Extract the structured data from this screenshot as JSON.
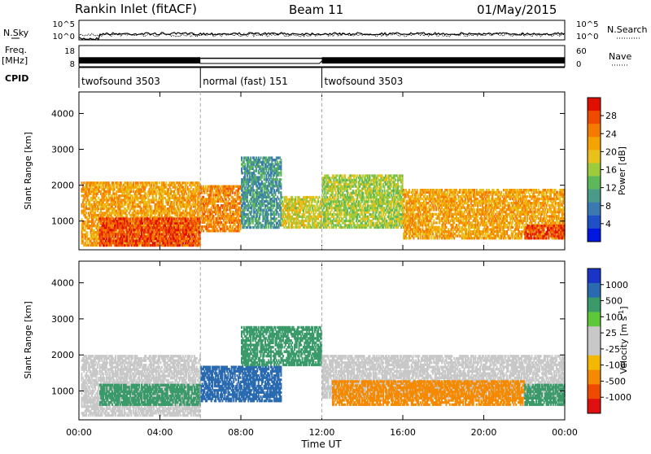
{
  "header": {
    "station": "Rankin Inlet (fitACF)",
    "beam": "Beam 11",
    "date": "01/May/2015"
  },
  "noise_panel": {
    "left_label": "N.Sky",
    "right_label": "N.Search",
    "left_ticks": [
      "10^5",
      "10^0"
    ],
    "right_ticks": [
      "10^5",
      "10^0"
    ]
  },
  "freq_panel": {
    "left_label_1": "Freq.",
    "left_label_2": "[MHz]",
    "left_ticks": [
      "18",
      "8"
    ],
    "right_label": "Nave",
    "right_ticks": [
      "60",
      "0"
    ],
    "ylim": [
      8,
      18
    ],
    "nave_lim": [
      0,
      60
    ]
  },
  "cpid": {
    "label": "CPID",
    "segments": [
      {
        "name": "twofsound 3503",
        "start_h": 0,
        "end_h": 6
      },
      {
        "name": "normal (fast) 151",
        "start_h": 6,
        "end_h": 12
      },
      {
        "name": "twofsound 3503",
        "start_h": 12,
        "end_h": 24
      }
    ]
  },
  "x_axis": {
    "label": "Time UT",
    "range_h": [
      0,
      24
    ],
    "ticks": [
      "00:00",
      "04:00",
      "08:00",
      "12:00",
      "16:00",
      "20:00",
      "00:00"
    ],
    "tick_hours": [
      0,
      4,
      8,
      12,
      16,
      20,
      24
    ]
  },
  "colors": {
    "power": [
      "#0018e0",
      "#2050c8",
      "#3a7ab0",
      "#4a9a8a",
      "#5db85a",
      "#9ccc3c",
      "#e8c21a",
      "#f5a300",
      "#f57a00",
      "#f04a00",
      "#e01000"
    ],
    "velocity": [
      "#e01010",
      "#f04a00",
      "#f58a00",
      "#f5b800",
      "#c8c8c8",
      "#c8c8c8",
      "#5cc83a",
      "#3a9a6a",
      "#2a6ab0",
      "#1a34c8"
    ]
  },
  "chart_data": [
    {
      "type": "heatmap",
      "title": "Power",
      "ylabel": "Slant Range [km]",
      "ylim": [
        200,
        4600
      ],
      "yticks": [
        "1000",
        "2000",
        "3000",
        "4000"
      ],
      "ytick_values": [
        1000,
        2000,
        3000,
        4000
      ],
      "colorbar": {
        "label": "Power [dB]",
        "ticks": [
          "4",
          "8",
          "12",
          "16",
          "20",
          "24",
          "28"
        ],
        "tick_values": [
          4,
          8,
          12,
          16,
          20,
          24,
          28
        ],
        "range": [
          0,
          32
        ]
      },
      "regions": [
        {
          "t": [
            0.1,
            6.0
          ],
          "r": [
            300,
            2100
          ],
          "value": 22
        },
        {
          "t": [
            1.0,
            6.0
          ],
          "r": [
            300,
            1100
          ],
          "value": 28
        },
        {
          "t": [
            6.0,
            8.0
          ],
          "r": [
            700,
            2000
          ],
          "value": 24
        },
        {
          "t": [
            8.0,
            10.0
          ],
          "r": [
            800,
            2800
          ],
          "value": 10
        },
        {
          "t": [
            10.0,
            12.0
          ],
          "r": [
            800,
            1700
          ],
          "value": 18
        },
        {
          "t": [
            12.0,
            16.0
          ],
          "r": [
            800,
            2300
          ],
          "value": 16
        },
        {
          "t": [
            16.0,
            24.0
          ],
          "r": [
            500,
            1900
          ],
          "value": 22
        },
        {
          "t": [
            22.0,
            24.0
          ],
          "r": [
            500,
            900
          ],
          "value": 28
        }
      ]
    },
    {
      "type": "heatmap",
      "title": "Velocity",
      "ylabel": "Slant Range [km]",
      "ylim": [
        200,
        4600
      ],
      "yticks": [
        "1000",
        "2000",
        "3000",
        "4000"
      ],
      "ytick_values": [
        1000,
        2000,
        3000,
        4000
      ],
      "colorbar": {
        "label": "Velocity [m s^-1]",
        "ticks": [
          "1000",
          "500",
          "100",
          "25",
          "-25",
          "-100",
          "-500",
          "-1000"
        ],
        "tick_values": [
          1000,
          500,
          100,
          25,
          -25,
          -100,
          -500,
          -1000
        ]
      },
      "regions": [
        {
          "t": [
            0.1,
            6.0
          ],
          "r": [
            300,
            2000
          ],
          "value": 0
        },
        {
          "t": [
            1.0,
            6.0
          ],
          "r": [
            600,
            1200
          ],
          "value": 200
        },
        {
          "t": [
            6.0,
            10.0
          ],
          "r": [
            700,
            1700
          ],
          "value": 800
        },
        {
          "t": [
            8.0,
            12.0
          ],
          "r": [
            1700,
            2800
          ],
          "value": 150
        },
        {
          "t": [
            12.0,
            24.0
          ],
          "r": [
            800,
            2000
          ],
          "value": 0
        },
        {
          "t": [
            12.5,
            22.0
          ],
          "r": [
            600,
            1300
          ],
          "value": -150
        },
        {
          "t": [
            22.0,
            24.0
          ],
          "r": [
            600,
            1200
          ],
          "value": 150
        }
      ]
    }
  ]
}
